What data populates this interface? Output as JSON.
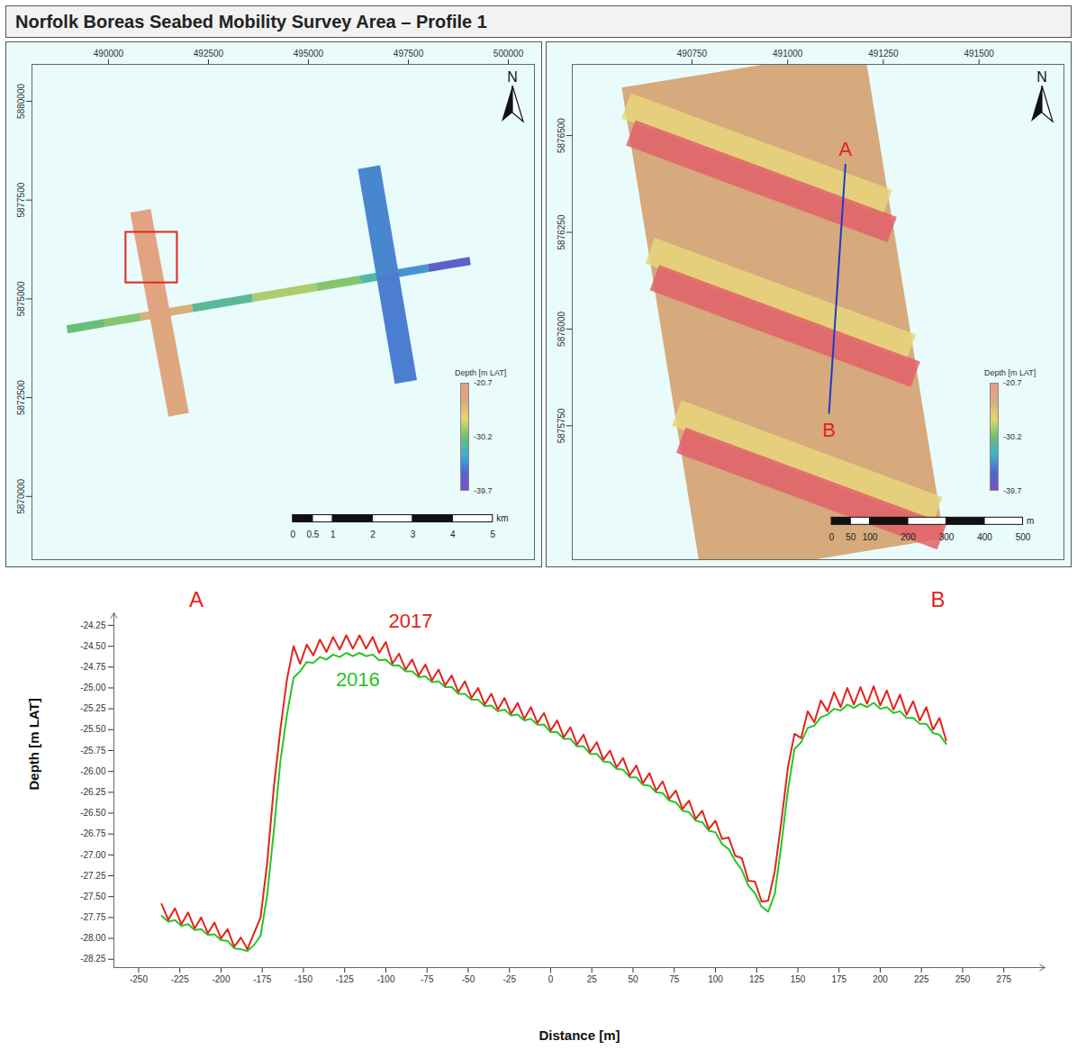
{
  "title": "Norfolk Boreas Seabed Mobility Survey Area – Profile 1",
  "maps": [
    {
      "north": "N",
      "xlim": [
        488087,
        500652
      ],
      "ylim": [
        5868400,
        5880933
      ],
      "xticks": [
        490000,
        492500,
        495000,
        497500,
        500000
      ],
      "yticks": [
        5870000,
        5872500,
        5875000,
        5877500,
        5880000
      ],
      "legend_title": "Depth [m LAT]",
      "legend_ticks": [
        -20.7,
        -30.2,
        -39.7
      ],
      "scale_bar": {
        "origin": [
          494612,
          5869344
        ],
        "ticks": [
          0,
          0.5,
          1,
          2,
          3,
          4,
          5
        ],
        "unit": "km"
      },
      "transect": {
        "x": [
          488965,
          489900,
          490800,
          492100,
          493600,
          495200,
          496300,
          497100,
          498000,
          499045
        ],
        "y": [
          5874228,
          5874389,
          5874543,
          5874767,
          5875024,
          5875299,
          5875488,
          5875626,
          5875781,
          5875960
        ],
        "depth": [
          -30.5,
          -29.5,
          -24.0,
          -31.5,
          -28.5,
          -29.5,
          -32.0,
          -34.5,
          -37.5,
          -38.5
        ]
      },
      "strips": [
        {
          "x": [
            490799,
            491277,
            491755
          ],
          "y": [
            5877225,
            5874645,
            5872064
          ],
          "depth": [
            -22.4,
            -22.8,
            -22.6
          ],
          "width": 518
        },
        {
          "x": [
            496514,
            496976,
            497437
          ],
          "y": [
            5878335,
            5875616,
            5872896
          ],
          "depth": [
            -35.2,
            -35.6,
            -36.0
          ],
          "width": 562
        }
      ]
    },
    {
      "north": "N",
      "xlim": [
        490437,
        491722
      ],
      "ylim": [
        5875404,
        5876684
      ],
      "xticks": [
        490750,
        491000,
        491250,
        491500
      ],
      "yticks": [
        5875750,
        5876000,
        5876250,
        5876500
      ],
      "legend_title": "Depth [m LAT]",
      "legend_ticks": [
        -20.7,
        -30.2,
        -39.7
      ],
      "scale_bar": {
        "origin": [
          491115,
          5875494
        ],
        "ticks": [
          0,
          50,
          100,
          200,
          300,
          400,
          500
        ],
        "unit": "m"
      },
      "strips": [
        {
          "x": [
            490883,
            491092
          ],
          "y": [
            5876675,
            5875408
          ],
          "color": "#d6aa7c",
          "width": 642
        }
      ],
      "bands": [
        {
          "color": "#e9d67c",
          "lines": [
            {
              "x": [
                490578,
                491261
              ],
              "y": [
                5876577,
                5876327
              ]
            },
            {
              "x": [
                490640,
                491323
              ],
              "y": [
                5876203,
                5875953
              ]
            },
            {
              "x": [
                490710,
                491392
              ],
              "y": [
                5875783,
                5875533
              ]
            }
          ]
        },
        {
          "color": "#e2606a",
          "lines": [
            {
              "x": [
                490590,
                491273
              ],
              "y": [
                5876507,
                5876257
              ]
            },
            {
              "x": [
                490652,
                491334
              ],
              "y": [
                5876133,
                5875883
              ]
            },
            {
              "x": [
                490721,
                491403
              ],
              "y": [
                5875713,
                5875463
              ]
            }
          ]
        }
      ],
      "profile": {
        "x": [
          491151,
          491108
        ],
        "y": [
          5876425,
          5875783
        ],
        "labels": [
          "A",
          "B"
        ],
        "color": "#1a3cc8"
      }
    }
  ],
  "chart_data": {
    "type": "line",
    "x_label": "Distance [m]",
    "y_label": "Depth [m LAT]",
    "xlim": [
      -265,
      300
    ],
    "ylim": [
      -28.35,
      -24.1
    ],
    "xticks": [
      -250,
      -225,
      -200,
      -175,
      -150,
      -125,
      -100,
      -75,
      -50,
      -25,
      0,
      25,
      50,
      75,
      100,
      125,
      150,
      175,
      200,
      225,
      250,
      275
    ],
    "yticks": [
      -24.25,
      {
        "value": -24.5,
        "label": "-24.50"
      },
      -24.75,
      {
        "value": -25,
        "label": "-25.00"
      },
      -25.25,
      {
        "value": -25.5,
        "label": "-25.50"
      },
      -25.75,
      {
        "value": -26,
        "label": "-26.00"
      },
      -26.25,
      {
        "value": -26.5,
        "label": "-26.50"
      },
      -26.75,
      {
        "value": -27,
        "label": "-27.00"
      },
      -27.25,
      {
        "value": -27.5,
        "label": "-27.50"
      },
      -27.75,
      {
        "value": -28,
        "label": "-28.00"
      },
      -28.25
    ],
    "grid": false,
    "annotations": [
      {
        "text": "A",
        "x": -215,
        "y": -23.95
      },
      {
        "text": "B",
        "x": 235,
        "y": -23.95
      }
    ],
    "x": [
      -236,
      -232,
      -228,
      -224,
      -220,
      -216,
      -212,
      -208,
      -204,
      -200,
      -196,
      -192,
      -188,
      -184,
      -180,
      -176,
      -172,
      -168,
      -164,
      -160,
      -156,
      -152,
      -148,
      -144,
      -140,
      -136,
      -132,
      -128,
      -124,
      -120,
      -116,
      -112,
      -108,
      -104,
      -100,
      -96,
      -92,
      -88,
      -84,
      -80,
      -76,
      -72,
      -68,
      -64,
      -60,
      -56,
      -52,
      -48,
      -44,
      -40,
      -36,
      -32,
      -28,
      -24,
      -20,
      -16,
      -12,
      -8,
      -4,
      0,
      4,
      8,
      12,
      16,
      20,
      24,
      28,
      32,
      36,
      40,
      44,
      48,
      52,
      56,
      60,
      64,
      68,
      72,
      76,
      80,
      84,
      88,
      92,
      96,
      100,
      104,
      108,
      112,
      116,
      120,
      124,
      128,
      132,
      136,
      140,
      144,
      148,
      152,
      156,
      160,
      164,
      168,
      172,
      176,
      180,
      184,
      188,
      192,
      196,
      200,
      204,
      208,
      212,
      216,
      220,
      224,
      228,
      232,
      236,
      240
    ],
    "series": [
      {
        "name": "2016",
        "color": "#27c427",
        "label_x": -117,
        "label_y": -24.9,
        "values": [
          -27.73,
          -27.8,
          -27.78,
          -27.85,
          -27.83,
          -27.9,
          -27.89,
          -27.96,
          -27.95,
          -28.02,
          -28.03,
          -28.12,
          -28.13,
          -28.15,
          -28.08,
          -27.97,
          -27.48,
          -26.72,
          -25.88,
          -25.32,
          -24.88,
          -24.8,
          -24.69,
          -24.7,
          -24.63,
          -24.66,
          -24.6,
          -24.63,
          -24.58,
          -24.62,
          -24.58,
          -24.62,
          -24.6,
          -24.67,
          -24.66,
          -24.73,
          -24.73,
          -24.8,
          -24.8,
          -24.87,
          -24.86,
          -24.93,
          -24.92,
          -24.99,
          -24.99,
          -25.07,
          -25.07,
          -25.14,
          -25.14,
          -25.22,
          -25.21,
          -25.28,
          -25.26,
          -25.33,
          -25.32,
          -25.39,
          -25.37,
          -25.44,
          -25.44,
          -25.53,
          -25.53,
          -25.61,
          -25.61,
          -25.7,
          -25.7,
          -25.79,
          -25.79,
          -25.88,
          -25.89,
          -25.97,
          -25.98,
          -26.07,
          -26.07,
          -26.16,
          -26.17,
          -26.25,
          -26.26,
          -26.35,
          -26.37,
          -26.47,
          -26.49,
          -26.59,
          -26.61,
          -26.71,
          -26.73,
          -26.87,
          -26.93,
          -27.07,
          -27.18,
          -27.37,
          -27.46,
          -27.62,
          -27.68,
          -27.47,
          -26.88,
          -26.22,
          -25.73,
          -25.65,
          -25.48,
          -25.45,
          -25.35,
          -25.32,
          -25.25,
          -25.27,
          -25.2,
          -25.24,
          -25.19,
          -25.23,
          -25.18,
          -25.25,
          -25.23,
          -25.3,
          -25.28,
          -25.36,
          -25.36,
          -25.43,
          -25.43,
          -25.54,
          -25.56,
          -25.67
        ]
      },
      {
        "name": "2017",
        "color": "#e3231c",
        "label_x": -85,
        "label_y": -24.2,
        "values": [
          -27.59,
          -27.78,
          -27.64,
          -27.83,
          -27.69,
          -27.88,
          -27.75,
          -27.94,
          -27.81,
          -28.0,
          -27.89,
          -28.1,
          -27.99,
          -28.13,
          -27.94,
          -27.75,
          -27.1,
          -26.2,
          -25.5,
          -24.9,
          -24.5,
          -24.71,
          -24.48,
          -24.61,
          -24.42,
          -24.57,
          -24.39,
          -24.54,
          -24.37,
          -24.53,
          -24.37,
          -24.53,
          -24.39,
          -24.58,
          -24.45,
          -24.71,
          -24.59,
          -24.78,
          -24.66,
          -24.85,
          -24.72,
          -24.91,
          -24.78,
          -24.97,
          -24.85,
          -25.05,
          -24.92,
          -25.12,
          -25.0,
          -25.2,
          -25.07,
          -25.26,
          -25.12,
          -25.31,
          -25.18,
          -25.37,
          -25.23,
          -25.42,
          -25.3,
          -25.51,
          -25.39,
          -25.59,
          -25.47,
          -25.68,
          -25.56,
          -25.77,
          -25.65,
          -25.86,
          -25.75,
          -25.95,
          -25.84,
          -26.05,
          -25.93,
          -26.14,
          -26.02,
          -26.23,
          -26.12,
          -26.33,
          -26.23,
          -26.45,
          -26.35,
          -26.57,
          -26.47,
          -26.69,
          -26.59,
          -26.81,
          -26.79,
          -27.01,
          -27.04,
          -27.31,
          -27.32,
          -27.56,
          -27.55,
          -27.2,
          -26.6,
          -25.95,
          -25.55,
          -25.6,
          -25.28,
          -25.41,
          -25.15,
          -25.28,
          -25.05,
          -25.23,
          -25.0,
          -25.2,
          -24.99,
          -25.19,
          -24.98,
          -25.21,
          -25.03,
          -25.26,
          -25.08,
          -25.32,
          -25.16,
          -25.39,
          -25.23,
          -25.5,
          -25.36,
          -25.63
        ]
      }
    ]
  }
}
